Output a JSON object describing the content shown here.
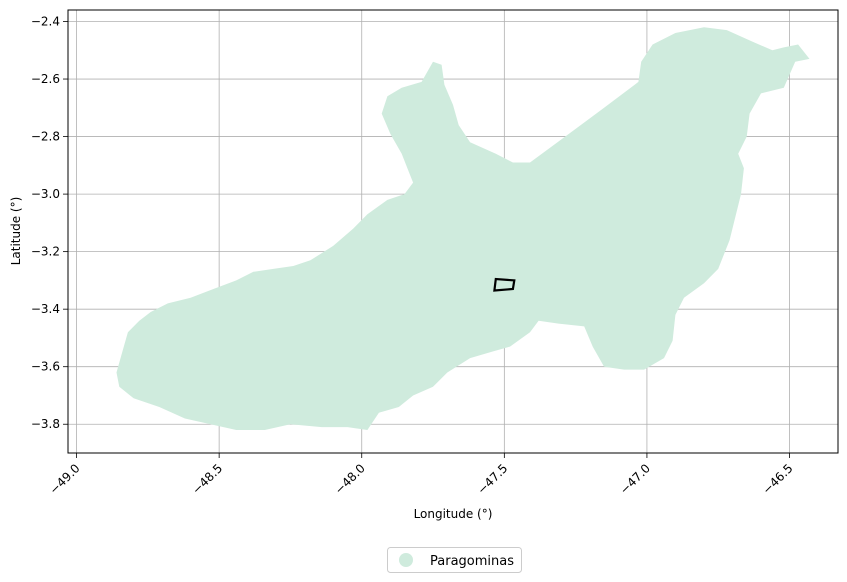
{
  "chart_data": {
    "type": "map",
    "xlabel": "Longitude (°)",
    "ylabel": "Latitude (°)",
    "xlim": [
      -49.03,
      -46.33
    ],
    "ylim": [
      -3.9,
      -2.36
    ],
    "x_ticks": [
      -49.0,
      -48.5,
      -48.0,
      -47.5,
      -47.0,
      -46.5
    ],
    "x_tick_labels": [
      "−49.0",
      "−48.5",
      "−48.0",
      "−47.5",
      "−47.0",
      "−46.5"
    ],
    "y_ticks": [
      -2.4,
      -2.6,
      -2.8,
      -3.0,
      -3.2,
      -3.4,
      -3.6,
      -3.8
    ],
    "y_tick_labels": [
      "−2.4",
      "−2.6",
      "−2.8",
      "−3.0",
      "−3.2",
      "−3.4",
      "−3.6",
      "−3.8"
    ],
    "grid": true,
    "legend_position": "bottom-center",
    "region": {
      "name": "Paragominas",
      "color": "#cfebdd",
      "outline": [
        [
          -48.86,
          -3.62
        ],
        [
          -48.84,
          -3.55
        ],
        [
          -48.82,
          -3.48
        ],
        [
          -48.78,
          -3.44
        ],
        [
          -48.74,
          -3.41
        ],
        [
          -48.68,
          -3.38
        ],
        [
          -48.6,
          -3.36
        ],
        [
          -48.52,
          -3.33
        ],
        [
          -48.44,
          -3.3
        ],
        [
          -48.38,
          -3.27
        ],
        [
          -48.31,
          -3.26
        ],
        [
          -48.24,
          -3.25
        ],
        [
          -48.18,
          -3.23
        ],
        [
          -48.1,
          -3.18
        ],
        [
          -48.03,
          -3.12
        ],
        [
          -47.98,
          -3.07
        ],
        [
          -47.91,
          -3.02
        ],
        [
          -47.85,
          -3.0
        ],
        [
          -47.82,
          -2.96
        ],
        [
          -47.84,
          -2.91
        ],
        [
          -47.86,
          -2.86
        ],
        [
          -47.9,
          -2.79
        ],
        [
          -47.93,
          -2.72
        ],
        [
          -47.91,
          -2.66
        ],
        [
          -47.86,
          -2.63
        ],
        [
          -47.79,
          -2.61
        ],
        [
          -47.75,
          -2.54
        ],
        [
          -47.72,
          -2.55
        ],
        [
          -47.71,
          -2.62
        ],
        [
          -47.68,
          -2.69
        ],
        [
          -47.66,
          -2.76
        ],
        [
          -47.62,
          -2.82
        ],
        [
          -47.53,
          -2.86
        ],
        [
          -47.47,
          -2.89
        ],
        [
          -47.41,
          -2.89
        ],
        [
          -47.3,
          -2.81
        ],
        [
          -47.15,
          -2.7
        ],
        [
          -47.03,
          -2.61
        ],
        [
          -47.02,
          -2.54
        ],
        [
          -46.98,
          -2.48
        ],
        [
          -46.9,
          -2.44
        ],
        [
          -46.8,
          -2.42
        ],
        [
          -46.72,
          -2.43
        ],
        [
          -46.63,
          -2.47
        ],
        [
          -46.56,
          -2.5
        ],
        [
          -46.52,
          -2.49
        ],
        [
          -46.47,
          -2.48
        ],
        [
          -46.43,
          -2.53
        ],
        [
          -46.48,
          -2.54
        ],
        [
          -46.52,
          -2.63
        ],
        [
          -46.6,
          -2.65
        ],
        [
          -46.64,
          -2.72
        ],
        [
          -46.65,
          -2.8
        ],
        [
          -46.68,
          -2.86
        ],
        [
          -46.66,
          -2.91
        ],
        [
          -46.67,
          -3.0
        ],
        [
          -46.69,
          -3.08
        ],
        [
          -46.71,
          -3.16
        ],
        [
          -46.75,
          -3.26
        ],
        [
          -46.8,
          -3.31
        ],
        [
          -46.87,
          -3.36
        ],
        [
          -46.9,
          -3.42
        ],
        [
          -46.91,
          -3.51
        ],
        [
          -46.94,
          -3.57
        ],
        [
          -47.01,
          -3.61
        ],
        [
          -47.08,
          -3.61
        ],
        [
          -47.15,
          -3.6
        ],
        [
          -47.19,
          -3.53
        ],
        [
          -47.22,
          -3.46
        ],
        [
          -47.31,
          -3.45
        ],
        [
          -47.38,
          -3.44
        ],
        [
          -47.41,
          -3.48
        ],
        [
          -47.48,
          -3.53
        ],
        [
          -47.55,
          -3.55
        ],
        [
          -47.62,
          -3.57
        ],
        [
          -47.7,
          -3.62
        ],
        [
          -47.75,
          -3.67
        ],
        [
          -47.82,
          -3.7
        ],
        [
          -47.87,
          -3.74
        ],
        [
          -47.94,
          -3.76
        ],
        [
          -47.98,
          -3.82
        ],
        [
          -48.05,
          -3.81
        ],
        [
          -48.14,
          -3.81
        ],
        [
          -48.25,
          -3.8
        ],
        [
          -48.34,
          -3.82
        ],
        [
          -48.44,
          -3.82
        ],
        [
          -48.53,
          -3.8
        ],
        [
          -48.62,
          -3.78
        ],
        [
          -48.71,
          -3.74
        ],
        [
          -48.8,
          -3.71
        ],
        [
          -48.85,
          -3.67
        ]
      ]
    },
    "marker_box": {
      "outline": [
        [
          -47.535,
          -3.335
        ],
        [
          -47.47,
          -3.33
        ],
        [
          -47.465,
          -3.3
        ],
        [
          -47.53,
          -3.295
        ]
      ],
      "color": "#000000"
    }
  },
  "legend": {
    "label": "Paragominas",
    "color": "#cfebdd"
  }
}
